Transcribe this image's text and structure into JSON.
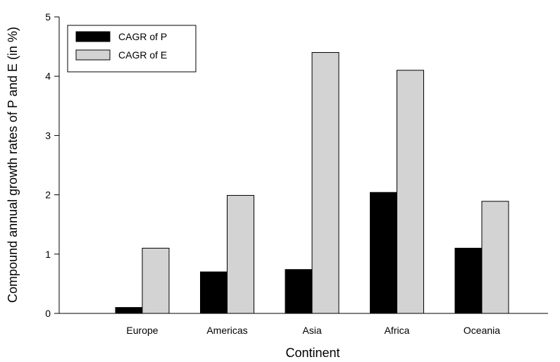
{
  "chart_data": {
    "type": "bar",
    "categories": [
      "Europe",
      "Americas",
      "Asia",
      "Africa",
      "Oceania"
    ],
    "series": [
      {
        "name": "CAGR of P",
        "values": [
          0.1,
          0.7,
          0.74,
          2.04,
          1.1
        ],
        "color": "#000000"
      },
      {
        "name": "CAGR of E",
        "values": [
          1.1,
          1.99,
          4.4,
          4.1,
          1.89
        ],
        "color": "#d3d3d3"
      }
    ],
    "title": "",
    "xlabel": "Continent",
    "ylabel": "Compound annual growth rates of P and E (in %)",
    "ylim": [
      0,
      5
    ],
    "yticks": [
      "0",
      "1",
      "2",
      "3",
      "4",
      "5"
    ],
    "grid": false,
    "legend_position": "top-left"
  }
}
